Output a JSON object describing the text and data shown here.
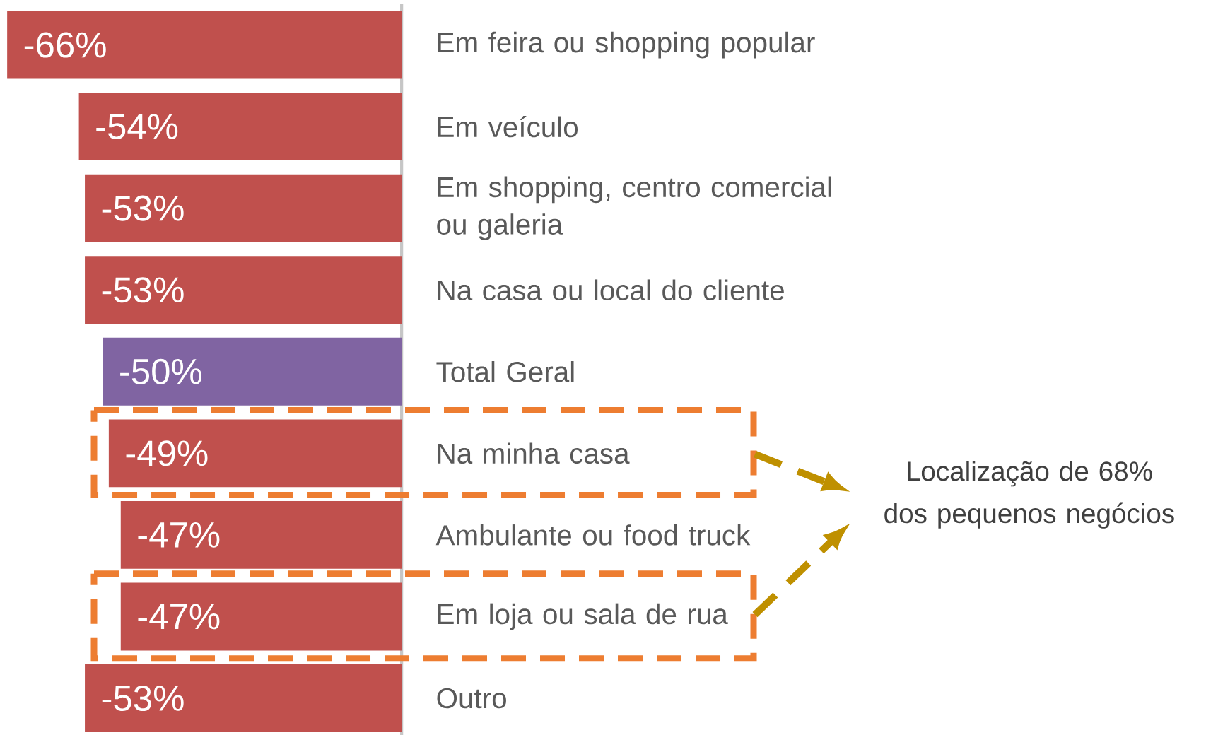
{
  "chart_data": {
    "type": "bar",
    "orientation": "horizontal",
    "categories": [
      "Em feira ou shopping popular",
      "Em veículo",
      "Em shopping, centro comercial ou galeria",
      "Na casa ou local do cliente",
      "Total Geral",
      "Na minha casa",
      "Ambulante ou food truck",
      "Em loja ou sala de rua",
      "Outro"
    ],
    "values": [
      -66,
      -54,
      -53,
      -53,
      -50,
      -49,
      -47,
      -47,
      -53
    ],
    "colors": [
      "#c0504d",
      "#c0504d",
      "#c0504d",
      "#c0504d",
      "#8064a2",
      "#c0504d",
      "#c0504d",
      "#c0504d",
      "#c0504d"
    ],
    "value_labels": [
      "-66%",
      "-54%",
      "-53%",
      "-53%",
      "-50%",
      "-49%",
      "-47%",
      "-47%",
      "-53%"
    ],
    "tick_labels": "y",
    "annotations": [
      "Localização de 68% dos pequenos negócios"
    ]
  }
}
